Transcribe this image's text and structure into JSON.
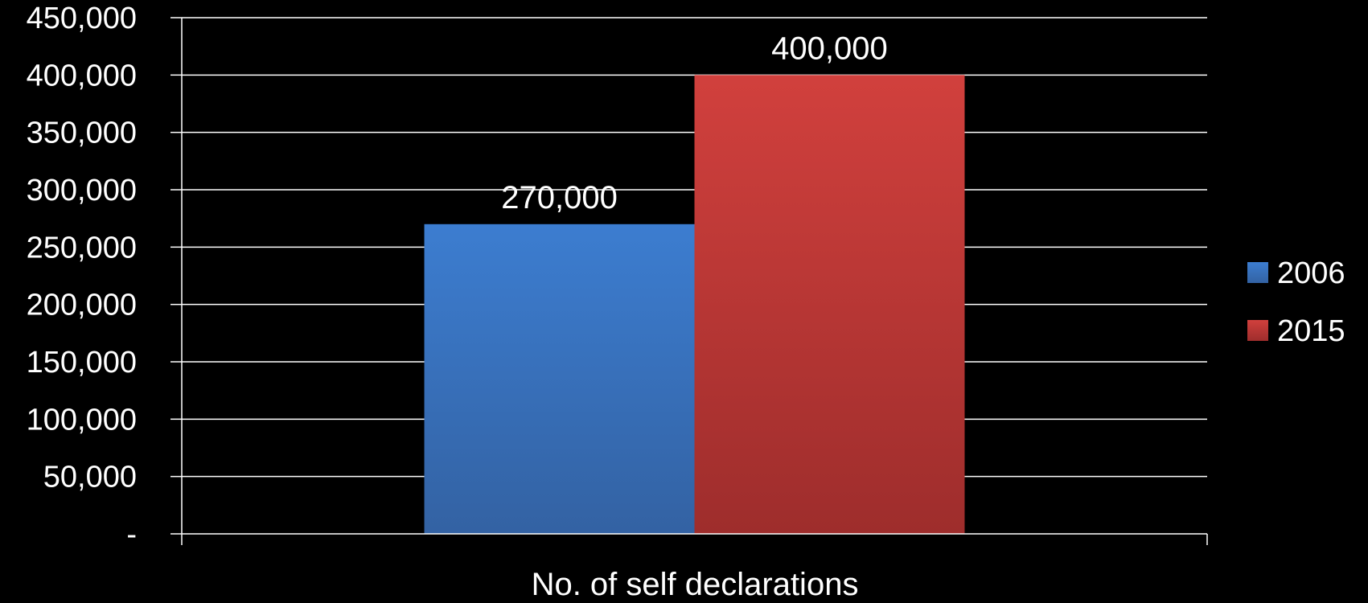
{
  "chart_data": {
    "type": "bar",
    "categories": [
      "No. of self declarations"
    ],
    "series": [
      {
        "name": "2006",
        "values": [
          270000
        ],
        "color": "#3c7dd0",
        "color_dark": "#3362a3"
      },
      {
        "name": "2015",
        "values": [
          400000
        ],
        "color": "#d1403d",
        "color_dark": "#9e2d2c"
      }
    ],
    "data_labels": [
      "270,000",
      "400,000"
    ],
    "yticks": [
      0,
      50000,
      100000,
      150000,
      200000,
      250000,
      300000,
      350000,
      400000,
      450000
    ],
    "ytick_labels": [
      "-",
      "50,000",
      "100,000",
      "150,000",
      "200,000",
      "250,000",
      "300,000",
      "350,000",
      "400,000",
      "450,000"
    ],
    "ylim": [
      0,
      450000
    ],
    "xlabel": "No. of self declarations",
    "ylabel": "",
    "title": "",
    "grid": true,
    "legend": "right",
    "background": "#000000",
    "text_color": "#ffffff"
  }
}
